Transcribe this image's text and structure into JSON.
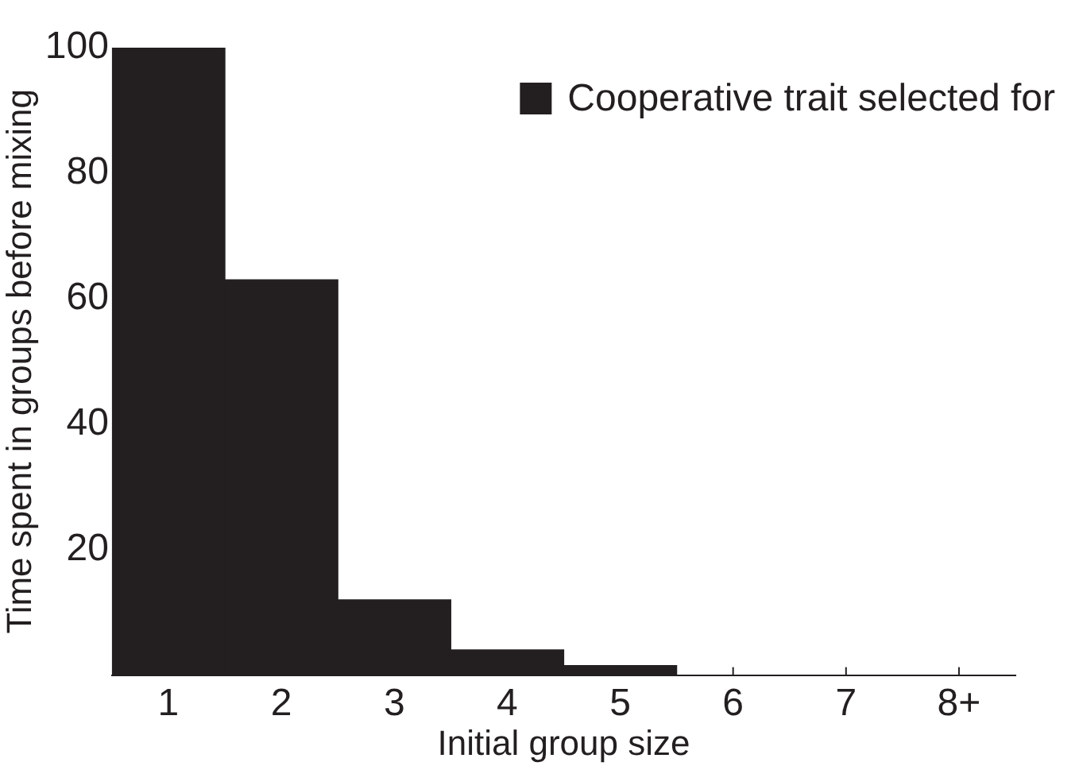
{
  "chart_data": {
    "type": "bar",
    "xlabel": "Initial group size",
    "ylabel": "Time spent in groups before mixing",
    "categories": [
      "1",
      "2",
      "3",
      "4",
      "5",
      "6",
      "7",
      "8+"
    ],
    "series": [
      {
        "name": "Cooperative trait selected for",
        "color": "#231f20",
        "values": [
          100,
          63,
          12,
          4,
          1.5,
          0,
          0,
          0
        ]
      }
    ],
    "ylim": [
      0,
      100
    ],
    "yticks": [
      20,
      40,
      60,
      80,
      100
    ],
    "grid": false,
    "legend": "top right"
  }
}
